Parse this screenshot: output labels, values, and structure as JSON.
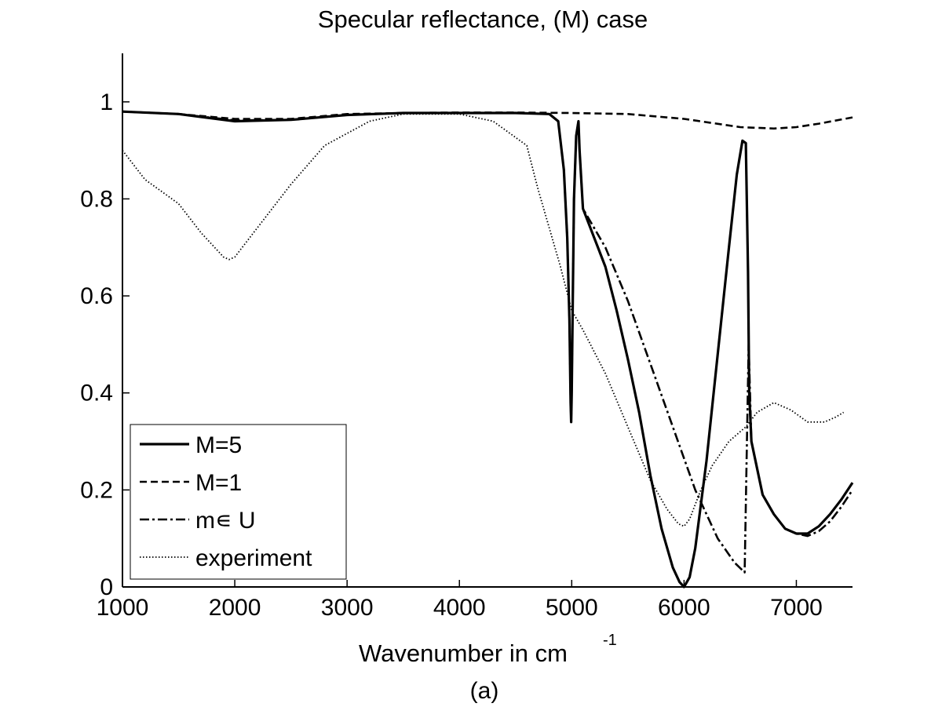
{
  "chart_data": {
    "type": "line",
    "title": "Specular reflectance, (M) case",
    "xlabel": "Wavenumber in cm",
    "xlabel_superscript": "-1",
    "ylabel": "",
    "caption": "(a)",
    "xlim": [
      1000,
      7500
    ],
    "ylim": [
      0,
      1.1
    ],
    "xticks": [
      1000,
      2000,
      3000,
      4000,
      5000,
      6000,
      7000
    ],
    "yticks": [
      0,
      0.2,
      0.4,
      0.6,
      0.8,
      1
    ],
    "xtick_labels": [
      "1000",
      "2000",
      "3000",
      "4000",
      "5000",
      "6000",
      "7000"
    ],
    "ytick_labels": [
      "0",
      "0.2",
      "0.4",
      "0.6",
      "0.8",
      "1"
    ],
    "grid": false,
    "legend_position": "bottom-left",
    "series": [
      {
        "name": "M=5",
        "style": "solid",
        "points": [
          [
            1000,
            0.98
          ],
          [
            1500,
            0.975
          ],
          [
            2000,
            0.96
          ],
          [
            2500,
            0.963
          ],
          [
            3000,
            0.973
          ],
          [
            3500,
            0.977
          ],
          [
            4000,
            0.977
          ],
          [
            4500,
            0.977
          ],
          [
            4800,
            0.975
          ],
          [
            4880,
            0.96
          ],
          [
            4930,
            0.86
          ],
          [
            4960,
            0.72
          ],
          [
            4980,
            0.55
          ],
          [
            4990,
            0.38
          ],
          [
            4995,
            0.34
          ],
          [
            5000,
            0.4
          ],
          [
            5010,
            0.6
          ],
          [
            5020,
            0.8
          ],
          [
            5040,
            0.93
          ],
          [
            5060,
            0.96
          ],
          [
            5070,
            0.9
          ],
          [
            5100,
            0.78
          ],
          [
            5200,
            0.72
          ],
          [
            5300,
            0.66
          ],
          [
            5400,
            0.57
          ],
          [
            5500,
            0.47
          ],
          [
            5600,
            0.36
          ],
          [
            5700,
            0.23
          ],
          [
            5800,
            0.12
          ],
          [
            5900,
            0.04
          ],
          [
            5960,
            0.01
          ],
          [
            6000,
            0.0
          ],
          [
            6050,
            0.02
          ],
          [
            6100,
            0.08
          ],
          [
            6200,
            0.26
          ],
          [
            6300,
            0.48
          ],
          [
            6400,
            0.7
          ],
          [
            6470,
            0.85
          ],
          [
            6520,
            0.92
          ],
          [
            6550,
            0.915
          ],
          [
            6570,
            0.65
          ],
          [
            6580,
            0.4
          ],
          [
            6600,
            0.3
          ],
          [
            6700,
            0.19
          ],
          [
            6800,
            0.15
          ],
          [
            6900,
            0.12
          ],
          [
            7000,
            0.11
          ],
          [
            7100,
            0.11
          ],
          [
            7200,
            0.125
          ],
          [
            7300,
            0.15
          ],
          [
            7400,
            0.18
          ],
          [
            7500,
            0.215
          ]
        ]
      },
      {
        "name": "M=1",
        "style": "dashed",
        "points": [
          [
            1000,
            0.98
          ],
          [
            1500,
            0.975
          ],
          [
            2000,
            0.965
          ],
          [
            2500,
            0.965
          ],
          [
            3000,
            0.975
          ],
          [
            3500,
            0.977
          ],
          [
            4000,
            0.978
          ],
          [
            4500,
            0.978
          ],
          [
            5000,
            0.977
          ],
          [
            5500,
            0.975
          ],
          [
            6000,
            0.965
          ],
          [
            6500,
            0.948
          ],
          [
            6800,
            0.945
          ],
          [
            7000,
            0.948
          ],
          [
            7200,
            0.955
          ],
          [
            7500,
            0.968
          ]
        ]
      },
      {
        "name": "m∈ U",
        "legend_label": "m∊ U",
        "style": "dashdot",
        "points": [
          [
            1000,
            0.98
          ],
          [
            1500,
            0.975
          ],
          [
            2000,
            0.962
          ],
          [
            2500,
            0.963
          ],
          [
            3000,
            0.973
          ],
          [
            3500,
            0.977
          ],
          [
            4000,
            0.977
          ],
          [
            4500,
            0.977
          ],
          [
            4800,
            0.975
          ],
          [
            4880,
            0.96
          ],
          [
            4930,
            0.86
          ],
          [
            4960,
            0.72
          ],
          [
            4980,
            0.55
          ],
          [
            4990,
            0.38
          ],
          [
            4995,
            0.34
          ],
          [
            5000,
            0.4
          ],
          [
            5010,
            0.6
          ],
          [
            5020,
            0.8
          ],
          [
            5040,
            0.93
          ],
          [
            5060,
            0.96
          ],
          [
            5070,
            0.9
          ],
          [
            5100,
            0.78
          ],
          [
            5300,
            0.7
          ],
          [
            5500,
            0.59
          ],
          [
            5700,
            0.46
          ],
          [
            5900,
            0.33
          ],
          [
            6100,
            0.2
          ],
          [
            6300,
            0.1
          ],
          [
            6450,
            0.05
          ],
          [
            6540,
            0.03
          ],
          [
            6560,
            0.3
          ],
          [
            6575,
            0.5
          ],
          [
            6600,
            0.3
          ],
          [
            6700,
            0.19
          ],
          [
            6800,
            0.15
          ],
          [
            6900,
            0.12
          ],
          [
            7000,
            0.11
          ],
          [
            7100,
            0.105
          ],
          [
            7200,
            0.115
          ],
          [
            7300,
            0.135
          ],
          [
            7400,
            0.165
          ],
          [
            7500,
            0.2
          ]
        ]
      },
      {
        "name": "experiment",
        "style": "dotted",
        "points": [
          [
            1000,
            0.9
          ],
          [
            1200,
            0.84
          ],
          [
            1500,
            0.79
          ],
          [
            1700,
            0.73
          ],
          [
            1900,
            0.68
          ],
          [
            1950,
            0.675
          ],
          [
            2000,
            0.68
          ],
          [
            2200,
            0.74
          ],
          [
            2500,
            0.83
          ],
          [
            2800,
            0.91
          ],
          [
            3200,
            0.96
          ],
          [
            3500,
            0.975
          ],
          [
            4000,
            0.975
          ],
          [
            4300,
            0.96
          ],
          [
            4600,
            0.91
          ],
          [
            4700,
            0.82
          ],
          [
            4800,
            0.74
          ],
          [
            4900,
            0.66
          ],
          [
            5000,
            0.57
          ],
          [
            5100,
            0.53
          ],
          [
            5300,
            0.44
          ],
          [
            5500,
            0.33
          ],
          [
            5700,
            0.22
          ],
          [
            5850,
            0.16
          ],
          [
            5950,
            0.13
          ],
          [
            6000,
            0.125
          ],
          [
            6050,
            0.14
          ],
          [
            6150,
            0.2
          ],
          [
            6250,
            0.25
          ],
          [
            6400,
            0.3
          ],
          [
            6550,
            0.33
          ],
          [
            6650,
            0.36
          ],
          [
            6800,
            0.38
          ],
          [
            6950,
            0.365
          ],
          [
            7100,
            0.34
          ],
          [
            7250,
            0.34
          ],
          [
            7350,
            0.35
          ],
          [
            7420,
            0.36
          ]
        ]
      }
    ]
  }
}
